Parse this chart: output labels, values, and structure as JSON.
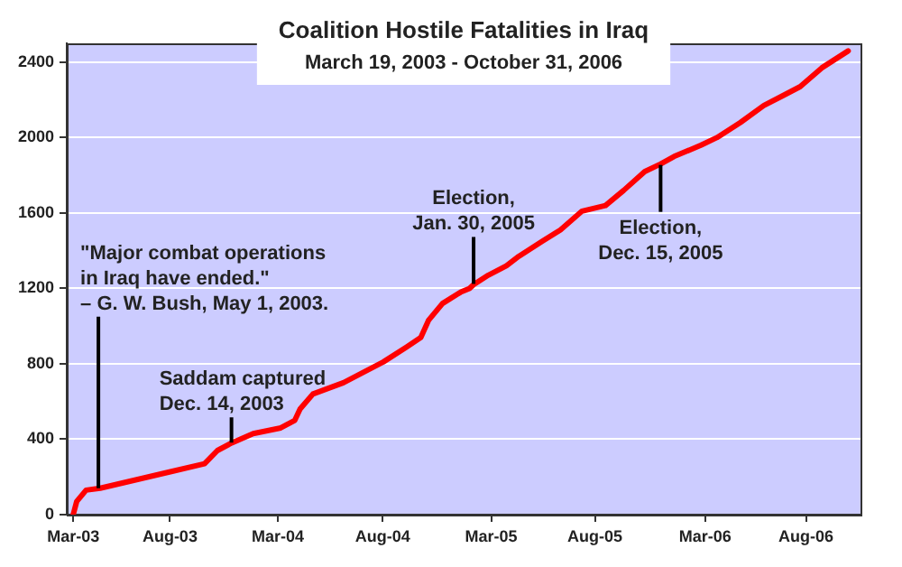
{
  "chart_data": {
    "type": "line",
    "title": "Coalition Hostile Fatalities in Iraq",
    "subtitle": "March 19, 2003 - October 31, 2006",
    "x": [
      "2003-03-19",
      "2003-03-25",
      "2003-04-10",
      "2003-05-04",
      "2003-09-04",
      "2003-10-29",
      "2003-11-20",
      "2003-12-14",
      "2004-01-20",
      "2004-03-07",
      "2004-03-31",
      "2004-04-09",
      "2004-05-01",
      "2004-06-22",
      "2004-07-23",
      "2004-08-29",
      "2004-10-08",
      "2004-11-01",
      "2004-11-14",
      "2004-12-08",
      "2005-01-08",
      "2005-01-23",
      "2005-01-30",
      "2005-02-24",
      "2005-03-27",
      "2005-04-17",
      "2005-05-27",
      "2005-06-27",
      "2005-08-03",
      "2005-09-12",
      "2005-10-13",
      "2005-11-18",
      "2005-12-15",
      "2006-01-07",
      "2006-02-22",
      "2006-03-21",
      "2006-04-30",
      "2006-06-09",
      "2006-07-10",
      "2006-08-10",
      "2006-09-16",
      "2006-10-31"
    ],
    "series": [
      {
        "color": "#ff0000",
        "values": [
          0,
          70,
          130,
          140,
          230,
          270,
          340,
          380,
          430,
          460,
          500,
          560,
          640,
          700,
          750,
          810,
          890,
          940,
          1030,
          1120,
          1180,
          1200,
          1220,
          1270,
          1320,
          1370,
          1450,
          1510,
          1610,
          1640,
          1720,
          1820,
          1860,
          1900,
          1960,
          2000,
          2080,
          2170,
          2220,
          2270,
          2370,
          2460
        ]
      }
    ],
    "xlim": [
      "2003-03-08",
      "2006-11-21"
    ],
    "xticks": [
      {
        "value": "2003-03-19",
        "label": "Mar-03"
      },
      {
        "value": "2003-08-31",
        "label": "Aug-03"
      },
      {
        "value": "2004-03-02",
        "label": "Mar-04"
      },
      {
        "value": "2004-08-28",
        "label": "Aug-04"
      },
      {
        "value": "2005-03-01",
        "label": "Mar-05"
      },
      {
        "value": "2005-08-25",
        "label": "Aug-05"
      },
      {
        "value": "2006-03-01",
        "label": "Mar-06"
      },
      {
        "value": "2006-08-20",
        "label": "Aug-06"
      }
    ],
    "ylim": [
      0,
      2500
    ],
    "yticks": [
      0,
      400,
      800,
      1200,
      1600,
      2000,
      2400
    ],
    "grid": "y",
    "legend": false,
    "marker": "none",
    "line_style": "solid",
    "annotations": [
      {
        "text": "\"Major combat operations\nin Iraq have ended.\"\n– G. W. Bush, May 1, 2003.",
        "x": "2003-05-01",
        "y": 140
      },
      {
        "text": "Saddam captured\nDec. 14, 2003",
        "x": "2003-12-14",
        "y": 382
      },
      {
        "text": "Election,\nJan. 30, 2005",
        "x": "2005-01-30",
        "y": 1224
      },
      {
        "text": "Election,\nDec. 15, 2005",
        "x": "2005-12-15",
        "y": 1855
      }
    ]
  }
}
